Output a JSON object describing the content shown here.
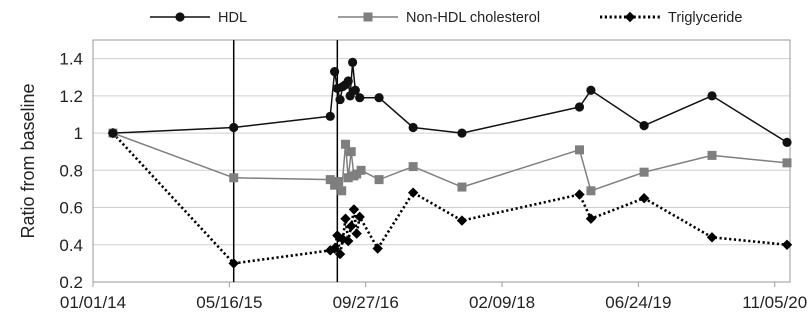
{
  "chart_data": {
    "type": "line",
    "title": "",
    "xlabel": "",
    "ylabel": "Ratio from baseline",
    "x_axis_type": "date",
    "xlim": [
      "2014-01-01",
      "2020-12-31"
    ],
    "x_ticks": [
      {
        "date": "2014-01-01",
        "label": "01/01/14"
      },
      {
        "date": "2015-05-16",
        "label": "05/16/15"
      },
      {
        "date": "2016-09-27",
        "label": "09/27/16"
      },
      {
        "date": "2018-02-09",
        "label": "02/09/18"
      },
      {
        "date": "2019-06-24",
        "label": "06/24/19"
      },
      {
        "date": "2020-11-05",
        "label": "11/05/20"
      }
    ],
    "ylim": [
      0.2,
      1.5
    ],
    "y_ticks": [
      0.2,
      0.4,
      0.6,
      0.8,
      1,
      1.2,
      1.4
    ],
    "grid": "horizontal",
    "legend_position": "top",
    "vertical_markers": [
      "2015-06-01",
      "2016-06-15"
    ],
    "series": [
      {
        "name": "HDL",
        "color": "#111111",
        "marker": "circle",
        "line_style": "solid",
        "points": [
          {
            "x": "2014-03-15",
            "y": 1.0
          },
          {
            "x": "2015-06-01",
            "y": 1.03
          },
          {
            "x": "2016-05-20",
            "y": 1.09
          },
          {
            "x": "2016-06-05",
            "y": 1.33
          },
          {
            "x": "2016-06-15",
            "y": 1.24
          },
          {
            "x": "2016-06-25",
            "y": 1.18
          },
          {
            "x": "2016-07-05",
            "y": 1.25
          },
          {
            "x": "2016-07-15",
            "y": 1.26
          },
          {
            "x": "2016-07-25",
            "y": 1.28
          },
          {
            "x": "2016-08-01",
            "y": 1.2
          },
          {
            "x": "2016-08-10",
            "y": 1.38
          },
          {
            "x": "2016-08-20",
            "y": 1.23
          },
          {
            "x": "2016-09-05",
            "y": 1.19
          },
          {
            "x": "2016-11-15",
            "y": 1.19
          },
          {
            "x": "2017-03-20",
            "y": 1.03
          },
          {
            "x": "2017-09-15",
            "y": 1.0
          },
          {
            "x": "2018-11-20",
            "y": 1.14
          },
          {
            "x": "2019-01-01",
            "y": 1.23
          },
          {
            "x": "2019-07-15",
            "y": 1.04
          },
          {
            "x": "2020-03-20",
            "y": 1.2
          },
          {
            "x": "2020-12-20",
            "y": 0.95
          }
        ]
      },
      {
        "name": "Non-HDL cholesterol",
        "color": "#7f7f7f",
        "marker": "square",
        "line_style": "solid",
        "points": [
          {
            "x": "2014-03-15",
            "y": 1.0
          },
          {
            "x": "2015-06-01",
            "y": 0.76
          },
          {
            "x": "2016-05-20",
            "y": 0.75
          },
          {
            "x": "2016-06-05",
            "y": 0.72
          },
          {
            "x": "2016-06-20",
            "y": 0.74
          },
          {
            "x": "2016-07-01",
            "y": 0.69
          },
          {
            "x": "2016-07-15",
            "y": 0.94
          },
          {
            "x": "2016-07-25",
            "y": 0.76
          },
          {
            "x": "2016-08-05",
            "y": 0.9
          },
          {
            "x": "2016-08-15",
            "y": 0.77
          },
          {
            "x": "2016-08-25",
            "y": 0.78
          },
          {
            "x": "2016-09-10",
            "y": 0.8
          },
          {
            "x": "2016-11-15",
            "y": 0.75
          },
          {
            "x": "2017-03-20",
            "y": 0.82
          },
          {
            "x": "2017-09-15",
            "y": 0.71
          },
          {
            "x": "2018-11-20",
            "y": 0.91
          },
          {
            "x": "2019-01-01",
            "y": 0.69
          },
          {
            "x": "2019-07-15",
            "y": 0.79
          },
          {
            "x": "2020-03-20",
            "y": 0.88
          },
          {
            "x": "2020-12-20",
            "y": 0.84
          }
        ]
      },
      {
        "name": "Triglyceride",
        "color": "#000000",
        "marker": "diamond",
        "line_style": "dotted",
        "points": [
          {
            "x": "2014-03-15",
            "y": 1.0
          },
          {
            "x": "2015-06-01",
            "y": 0.3
          },
          {
            "x": "2016-05-20",
            "y": 0.37
          },
          {
            "x": "2016-06-05",
            "y": 0.38
          },
          {
            "x": "2016-06-15",
            "y": 0.45
          },
          {
            "x": "2016-06-25",
            "y": 0.35
          },
          {
            "x": "2016-07-05",
            "y": 0.43
          },
          {
            "x": "2016-07-15",
            "y": 0.54
          },
          {
            "x": "2016-07-25",
            "y": 0.42
          },
          {
            "x": "2016-08-05",
            "y": 0.5
          },
          {
            "x": "2016-08-15",
            "y": 0.59
          },
          {
            "x": "2016-08-25",
            "y": 0.46
          },
          {
            "x": "2016-09-05",
            "y": 0.55
          },
          {
            "x": "2016-11-10",
            "y": 0.38
          },
          {
            "x": "2017-03-20",
            "y": 0.68
          },
          {
            "x": "2017-09-15",
            "y": 0.53
          },
          {
            "x": "2018-11-20",
            "y": 0.67
          },
          {
            "x": "2019-01-01",
            "y": 0.54
          },
          {
            "x": "2019-07-15",
            "y": 0.65
          },
          {
            "x": "2020-03-20",
            "y": 0.44
          },
          {
            "x": "2020-12-20",
            "y": 0.4
          }
        ]
      }
    ]
  }
}
